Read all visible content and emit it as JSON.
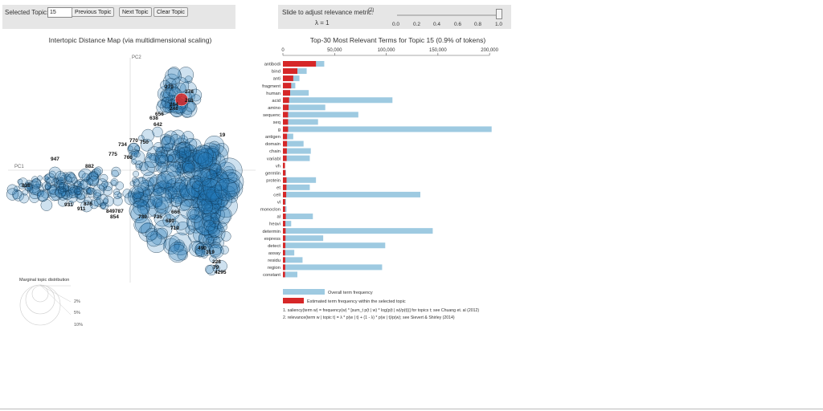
{
  "topic_control": {
    "label": "Selected Topic:",
    "value": "15",
    "prev_label": "Previous Topic",
    "next_label": "Next Topic",
    "clear_label": "Clear Topic"
  },
  "lambda_control": {
    "label": "Slide to adjust relevance metric:",
    "footnote_ref": "(2)",
    "value_text": "λ = 1",
    "value": 1.0,
    "ticks": [
      "0.0",
      "0.2",
      "0.4",
      "0.6",
      "0.8",
      "1.0"
    ]
  },
  "map": {
    "title": "Intertopic Distance Map (via multidimensional scaling)",
    "pc1_label": "PC1",
    "pc2_label": "PC2",
    "selected_topic_color": "#d62728",
    "circle_color": "#1f77b4",
    "visible_labels": [
      "947",
      "734",
      "770",
      "750",
      "775",
      "760",
      "882",
      "838",
      "931",
      "911",
      "876",
      "849787",
      "854",
      "730",
      "735",
      "680",
      "719",
      "666",
      "642",
      "638",
      "656",
      "19",
      "228",
      "79",
      "4295",
      "319",
      "490",
      "270",
      "278",
      "281",
      "264",
      "248"
    ],
    "legend": {
      "title": "Marginal topic distribution",
      "items": [
        "2%",
        "5%",
        "10%"
      ]
    }
  },
  "terms": {
    "title": "Top-30 Most Relevant Terms for Topic 15 (0.9% of tokens)",
    "overall_color": "#9ecae1",
    "topic_color": "#d62728",
    "legend_overall": "Overall term frequency",
    "legend_topic": "Estimated term frequency within the selected topic",
    "footnote1": "1. saliency(term w) = frequency(w) * [sum_t p(t | w) * log(p(t | w)/p(t))] for topics t; see Chuang et. al (2012)",
    "footnote2": "2. relevance(term w | topic t) = λ * p(w | t) + (1 - λ) * p(w | t)/p(w); see Sievert & Shirley (2014)"
  },
  "chart_data": {
    "type": "bar",
    "orientation": "horizontal",
    "title": "Top-30 Most Relevant Terms for Topic 15 (0.9% of tokens)",
    "xlim": [
      0,
      210000
    ],
    "x_ticks": [
      "0",
      "50,000",
      "100,000",
      "150,000",
      "200,000"
    ],
    "x_tick_values": [
      0,
      50000,
      100000,
      150000,
      200000
    ],
    "grid": false,
    "categories": [
      "antibodi",
      "bind",
      "anti",
      "fragment",
      "human",
      "acid",
      "amino",
      "sequenc",
      "seq",
      "g",
      "antigen",
      "domain",
      "chain",
      "variabl",
      "vh",
      "germlin",
      "protein",
      "et",
      "cell",
      "vl",
      "monoclon",
      "al",
      "heavi",
      "determin",
      "express",
      "detect",
      "assay",
      "residu",
      "region",
      "constant"
    ],
    "series": [
      {
        "name": "Overall term frequency",
        "values": [
          40000,
          23000,
          16000,
          12000,
          25000,
          106000,
          41000,
          73000,
          34000,
          202000,
          10000,
          20000,
          27000,
          26000,
          2000,
          3000,
          32000,
          26000,
          133000,
          3000,
          3500,
          29000,
          8000,
          145000,
          39000,
          99000,
          11000,
          19000,
          96000,
          14000
        ]
      },
      {
        "name": "Estimated term frequency within the selected topic",
        "values": [
          32000,
          14000,
          10000,
          8000,
          7000,
          6000,
          5500,
          5000,
          5000,
          5000,
          4000,
          4000,
          3800,
          3600,
          2000,
          2500,
          3500,
          3400,
          3200,
          2200,
          2200,
          2800,
          2400,
          2600,
          2500,
          2400,
          2200,
          2300,
          2300,
          2100
        ]
      }
    ]
  }
}
